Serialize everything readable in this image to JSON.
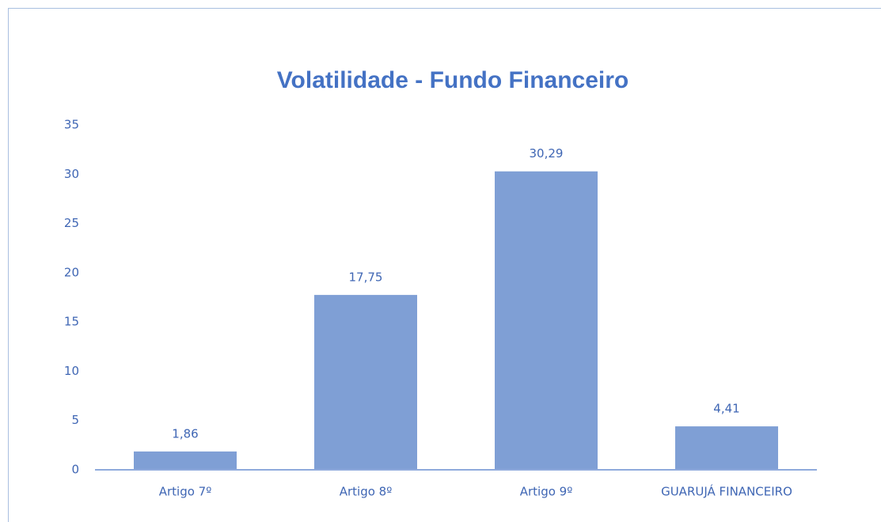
{
  "chart_data": {
    "type": "bar",
    "title": "Volatilidade - Fundo Financeiro",
    "categories": [
      "Artigo 7º",
      "Artigo 8º",
      "Artigo 9º",
      "GUARUJÁ FINANCEIRO"
    ],
    "values": [
      1.86,
      17.75,
      30.29,
      4.41
    ],
    "value_labels": [
      "1,86",
      "17,75",
      "30,29",
      "4,41"
    ],
    "color": "#7f9fd5",
    "ylim": [
      0,
      35
    ],
    "yticks": [
      0,
      5,
      10,
      15,
      20,
      25,
      30,
      35
    ],
    "grid": false
  }
}
